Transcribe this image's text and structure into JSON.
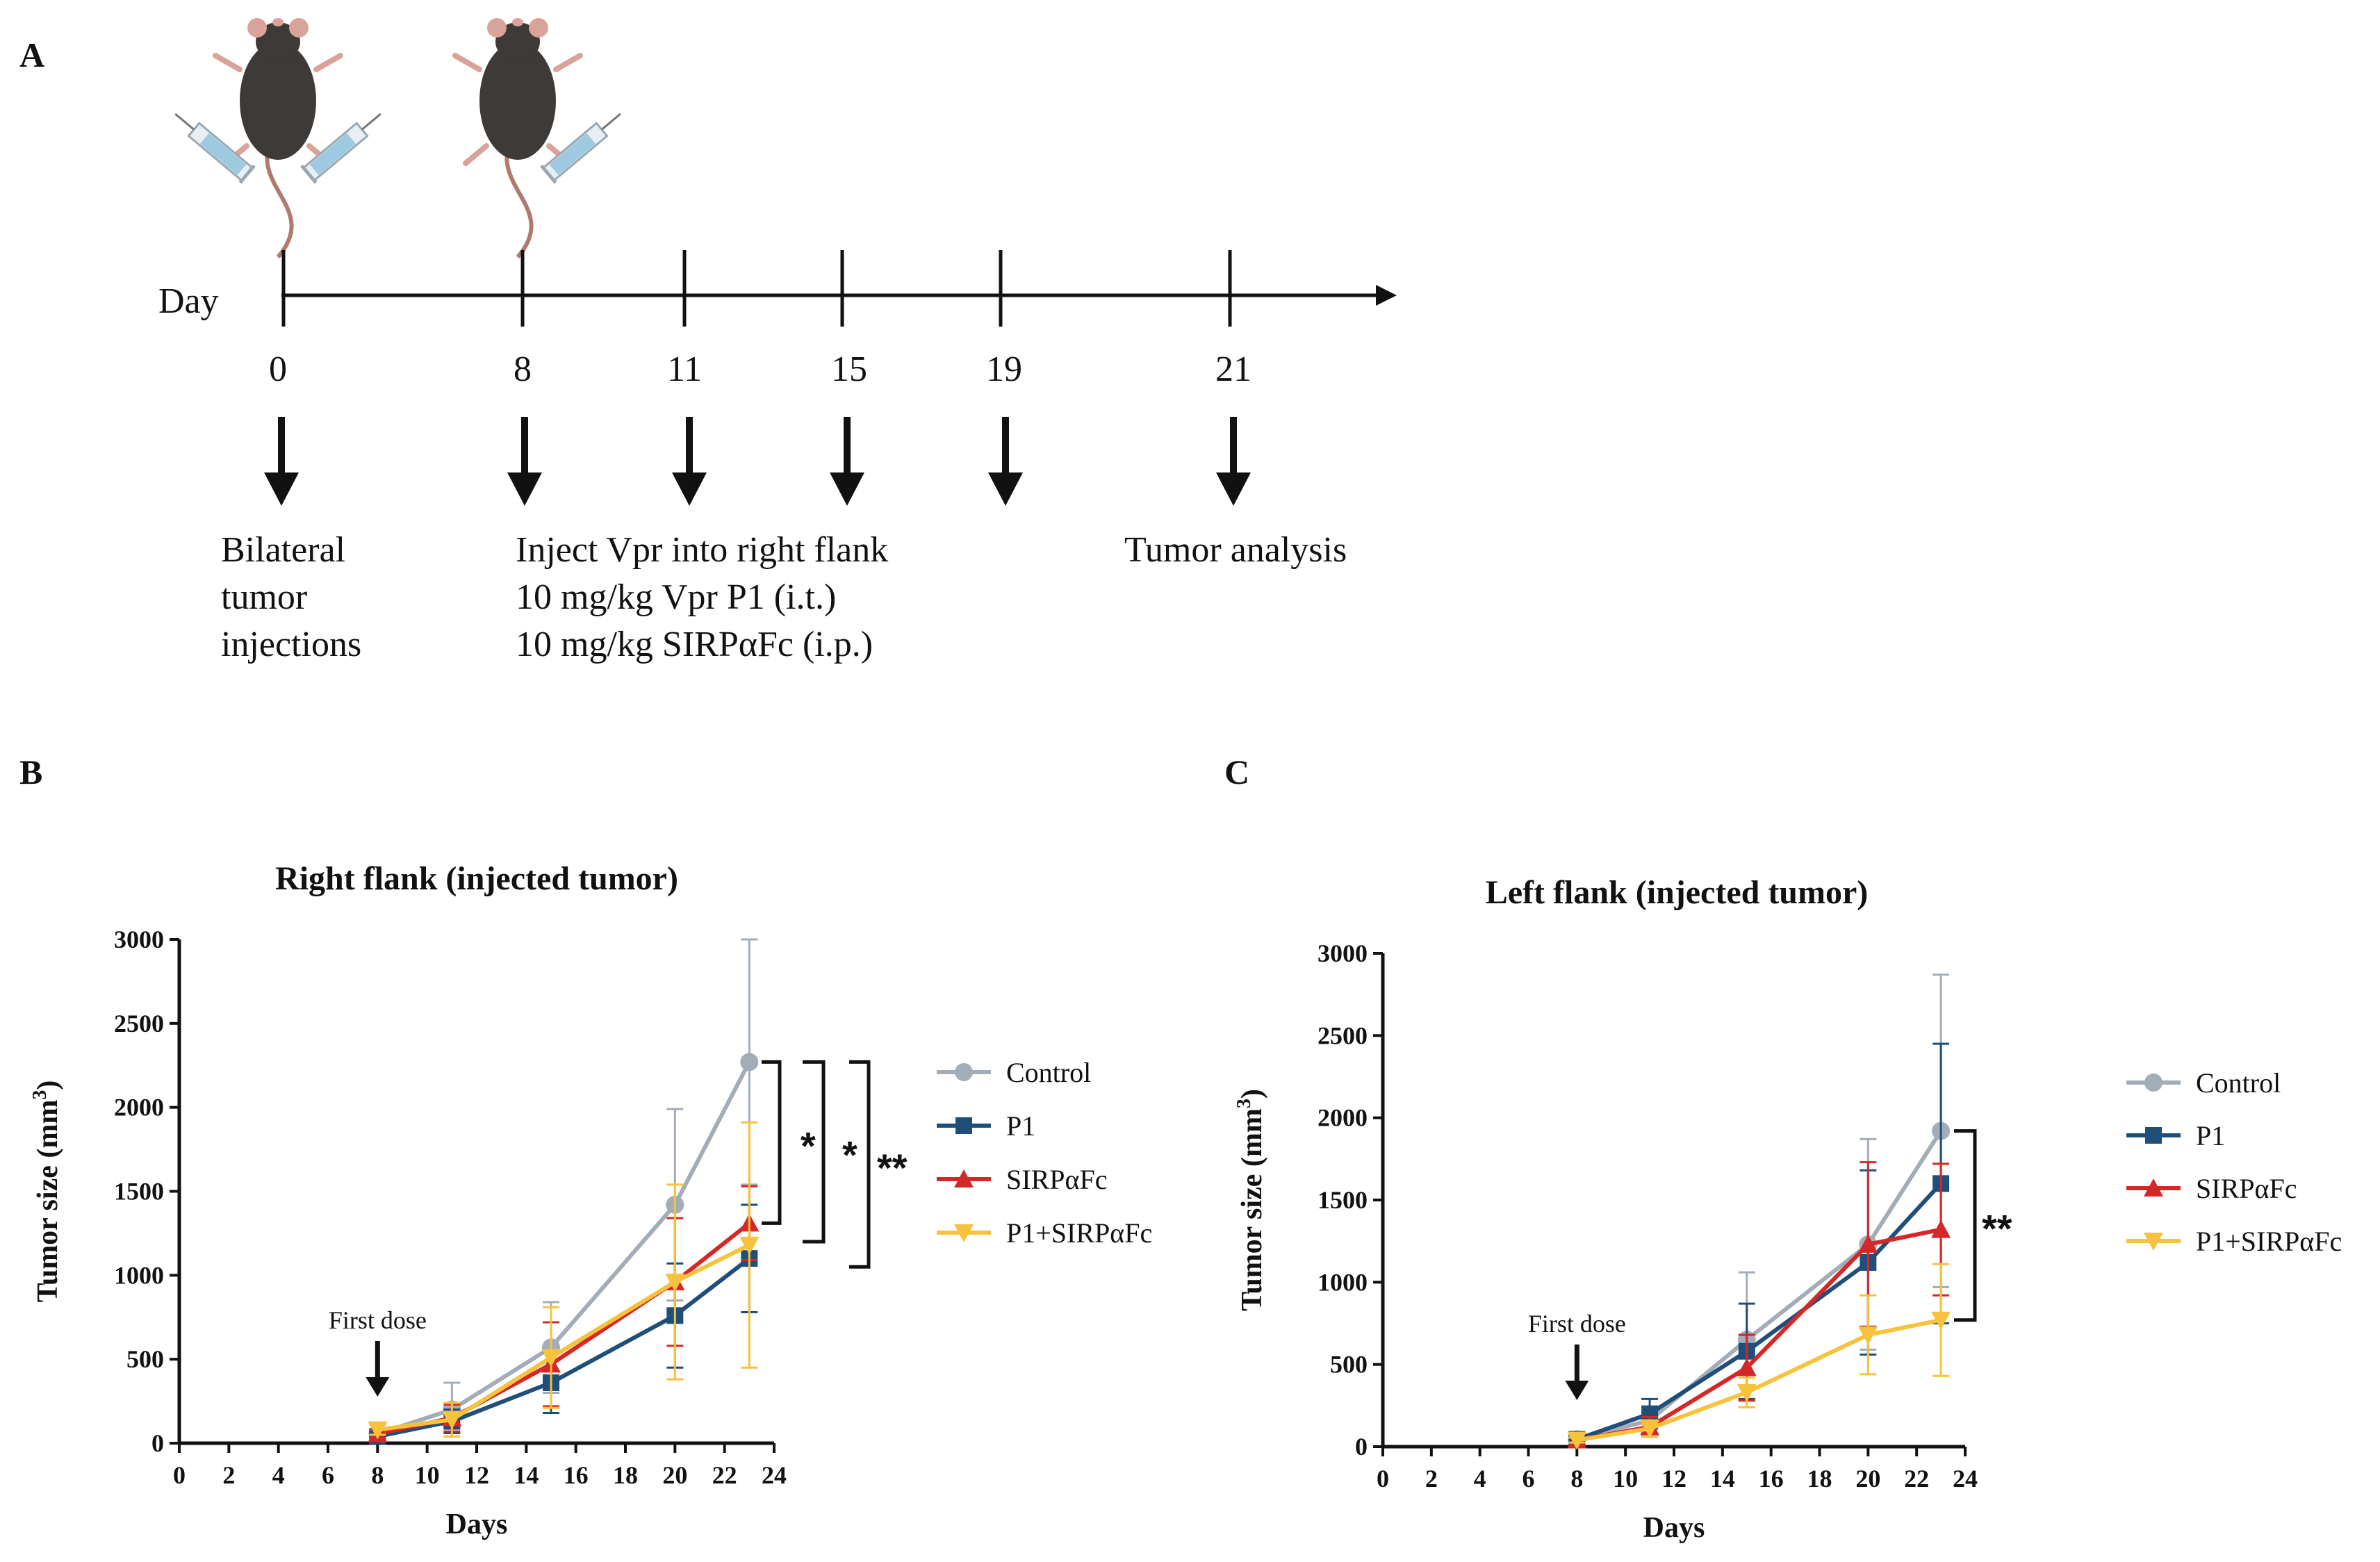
{
  "figure": {
    "panels": {
      "a": "A",
      "b": "B",
      "c": "C"
    }
  },
  "schedule": {
    "axis_label": "Day",
    "days": [
      "0",
      "8",
      "11",
      "15",
      "19",
      "21"
    ],
    "event1": [
      "Bilateral",
      "tumor",
      "injections"
    ],
    "event2": [
      "Inject Vpr into right flank",
      "10 mg/kg Vpr P1 (i.t.)",
      "10 mg/kg SIRPαFc (i.p.)"
    ],
    "event3": "Tumor analysis"
  },
  "colors": {
    "control": "#a3adb8",
    "p1": "#1f4e79",
    "sirp": "#d62728",
    "combo": "#f7c23c"
  },
  "chart_data": [
    {
      "type": "line",
      "title": "Right flank (injected tumor)",
      "xlabel": "Days",
      "ylabel": "Tumor size (mm",
      "ylabel_sup": "3",
      "ylabel_close": ")",
      "xlim": [
        0,
        24
      ],
      "ylim": [
        0,
        3000
      ],
      "xticks": [
        "0",
        "2",
        "4",
        "6",
        "8",
        "10",
        "12",
        "14",
        "16",
        "18",
        "20",
        "22",
        "24"
      ],
      "yticks": [
        "0",
        "500",
        "1000",
        "1500",
        "2000",
        "2500",
        "3000"
      ],
      "x": [
        8,
        11,
        15,
        20,
        23
      ],
      "annotation": "First dose",
      "annotation_x": 8,
      "series": [
        {
          "name": "Control",
          "marker": "circle",
          "color": "#a3adb8",
          "values": [
            55,
            200,
            570,
            1420,
            2270
          ],
          "errors": [
            25,
            160,
            270,
            570,
            730
          ]
        },
        {
          "name": "P1",
          "marker": "square",
          "color": "#1f4e79",
          "values": [
            40,
            130,
            360,
            760,
            1100
          ],
          "errors": [
            20,
            70,
            180,
            310,
            320
          ]
        },
        {
          "name": "SIRPαFc",
          "marker": "triangle-up",
          "color": "#d62728",
          "values": [
            55,
            150,
            470,
            960,
            1310
          ],
          "errors": [
            25,
            80,
            250,
            380,
            220
          ]
        },
        {
          "name": "P1+SIRPαFc",
          "marker": "triangle-down",
          "color": "#f7c23c",
          "values": [
            80,
            140,
            510,
            960,
            1180
          ],
          "errors": [
            30,
            100,
            300,
            580,
            730
          ]
        }
      ],
      "significance": [
        "*",
        "*",
        "**"
      ]
    },
    {
      "type": "line",
      "title": "Left flank (injected tumor)",
      "xlabel": "Days",
      "ylabel": "Tumor size (mm",
      "ylabel_sup": "3",
      "ylabel_close": ")",
      "xlim": [
        0,
        24
      ],
      "ylim": [
        0,
        3000
      ],
      "xticks": [
        "0",
        "2",
        "4",
        "6",
        "8",
        "10",
        "12",
        "14",
        "16",
        "18",
        "20",
        "22",
        "24"
      ],
      "yticks": [
        "0",
        "500",
        "1000",
        "1500",
        "2000",
        "2500",
        "3000"
      ],
      "x": [
        8,
        11,
        15,
        20,
        23
      ],
      "annotation": "First dose",
      "annotation_x": 8,
      "series": [
        {
          "name": "Control",
          "marker": "circle",
          "color": "#a3adb8",
          "values": [
            45,
            160,
            650,
            1230,
            1920
          ],
          "errors": [
            20,
            80,
            410,
            640,
            950
          ]
        },
        {
          "name": "P1",
          "marker": "square",
          "color": "#1f4e79",
          "values": [
            45,
            200,
            580,
            1120,
            1600
          ],
          "errors": [
            20,
            90,
            290,
            560,
            850
          ]
        },
        {
          "name": "SIRPαFc",
          "marker": "triangle-up",
          "color": "#d62728",
          "values": [
            40,
            120,
            480,
            1230,
            1320
          ],
          "errors": [
            15,
            60,
            200,
            500,
            400
          ]
        },
        {
          "name": "P1+SIRPαFc",
          "marker": "triangle-down",
          "color": "#f7c23c",
          "values": [
            40,
            110,
            330,
            680,
            770
          ],
          "errors": [
            15,
            50,
            90,
            240,
            340
          ]
        }
      ],
      "significance": [
        "**"
      ]
    }
  ]
}
